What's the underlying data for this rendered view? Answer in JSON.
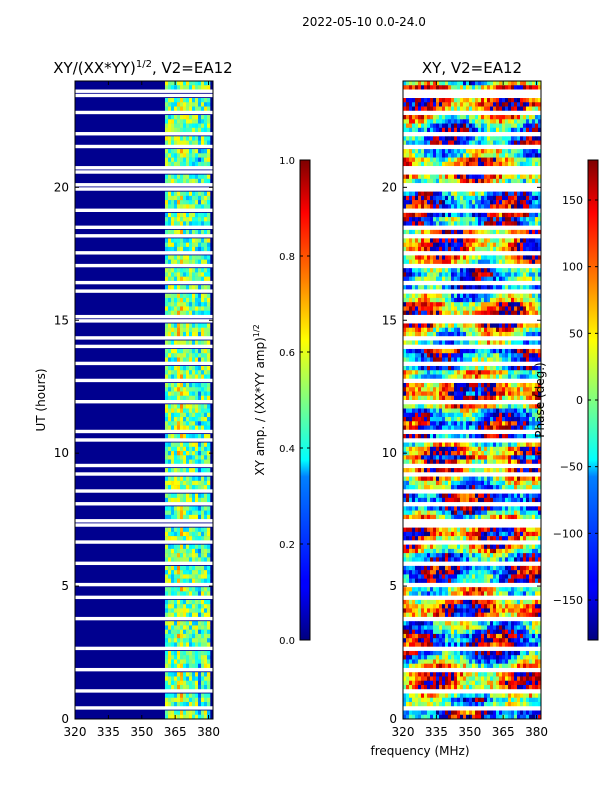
{
  "figure_title": "2022-05-10 0.0-24.0",
  "chart_data": [
    {
      "type": "heatmap",
      "title": "XY/(XX*YY)",
      "title_exponent": "1/2",
      "title_suffix": ", V2=EA12",
      "xlabel": "",
      "ylabel": "UT (hours)",
      "xlim": [
        320,
        382
      ],
      "ylim": [
        0,
        24
      ],
      "xticks": [
        320,
        335,
        350,
        365,
        380
      ],
      "yticks": [
        0,
        5,
        10,
        15,
        20
      ],
      "colorbar": {
        "label": "XY amp. / (XX*YY amp)",
        "label_exponent": "1/2",
        "range": [
          0.0,
          1.0
        ],
        "ticks": [
          "0.0",
          "0.2",
          "0.4",
          "0.6",
          "0.8",
          "1.0"
        ]
      }
    },
    {
      "type": "heatmap",
      "title": "XY, V2=EA12",
      "xlabel": "frequency (MHz)",
      "ylabel": "",
      "xlim": [
        320,
        382
      ],
      "ylim": [
        0,
        24
      ],
      "xticks": [
        320,
        335,
        350,
        365,
        380
      ],
      "yticks": [
        0,
        5,
        10,
        15,
        20
      ],
      "colorbar": {
        "label": "Phase (deg.)",
        "range": [
          -180,
          180
        ],
        "ticks": [
          "−150",
          "−100",
          "−50",
          "0",
          "50",
          "100",
          "150"
        ]
      }
    }
  ]
}
